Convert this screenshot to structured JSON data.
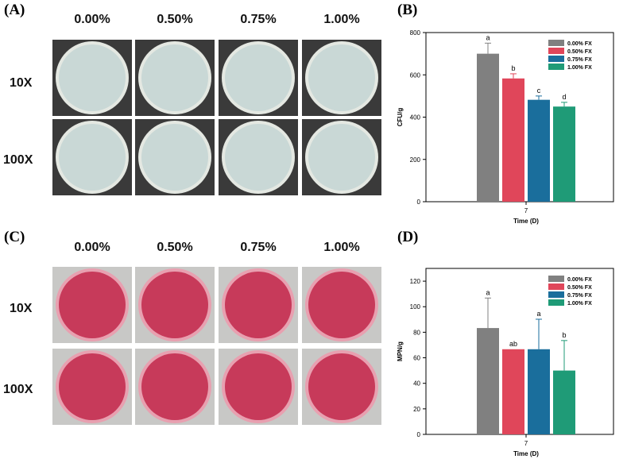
{
  "panels": {
    "A": {
      "letter": "(A)",
      "concentrations": [
        "0.00%",
        "0.50%",
        "0.75%",
        "1.00%"
      ],
      "rows": [
        "10X",
        "100X"
      ],
      "colors": {
        "background": "#3a3a3a",
        "agar": "#c9d8d6",
        "rim": "#e4e8e2"
      }
    },
    "C": {
      "letter": "(C)",
      "concentrations": [
        "0.00%",
        "0.50%",
        "0.75%",
        "1.00%"
      ],
      "rows": [
        "10X",
        "100X"
      ],
      "colors": {
        "background": "#c8c8c6",
        "agar": "#c73a5a",
        "rim": "#e8a0b0"
      }
    },
    "B": {
      "letter": "(B)"
    },
    "D": {
      "letter": "(D)"
    }
  },
  "chart_data": [
    {
      "type": "bar",
      "panel": "B",
      "categories": [
        "7"
      ],
      "xlabel": "Time (D)",
      "ylabel": "CFU/g",
      "ylim": [
        0,
        800
      ],
      "yticks": [
        0,
        200,
        400,
        600,
        800
      ],
      "legend_position": "top-right",
      "series": [
        {
          "name": "0.00% FX",
          "values": [
            700
          ],
          "error": [
            50
          ],
          "letter": "a",
          "color": "#808080"
        },
        {
          "name": "0.50% FX",
          "values": [
            583
          ],
          "error": [
            22
          ],
          "letter": "b",
          "color": "#e0465a"
        },
        {
          "name": "0.75% FX",
          "values": [
            482
          ],
          "error": [
            18
          ],
          "letter": "c",
          "color": "#1a6e9c"
        },
        {
          "name": "1.00% FX",
          "values": [
            450
          ],
          "error": [
            20
          ],
          "letter": "d",
          "color": "#1f9b77"
        }
      ]
    },
    {
      "type": "bar",
      "panel": "D",
      "categories": [
        "7"
      ],
      "xlabel": "Time (D)",
      "ylabel": "MPN/g",
      "ylim": [
        0,
        130
      ],
      "yticks": [
        0,
        20,
        40,
        60,
        80,
        100,
        120
      ],
      "legend_position": "top-right",
      "series": [
        {
          "name": "0.00% FX",
          "values": [
            83.3
          ],
          "error": [
            23.5
          ],
          "letter": "a",
          "color": "#808080"
        },
        {
          "name": "0.50% FX",
          "values": [
            66.7
          ],
          "error": [
            0
          ],
          "letter": "ab",
          "color": "#e0465a"
        },
        {
          "name": "0.75% FX",
          "values": [
            66.7
          ],
          "error": [
            23.5
          ],
          "letter": "a",
          "color": "#1a6e9c"
        },
        {
          "name": "1.00% FX",
          "values": [
            50
          ],
          "error": [
            23.5
          ],
          "letter": "b",
          "color": "#1f9b77"
        }
      ]
    }
  ]
}
